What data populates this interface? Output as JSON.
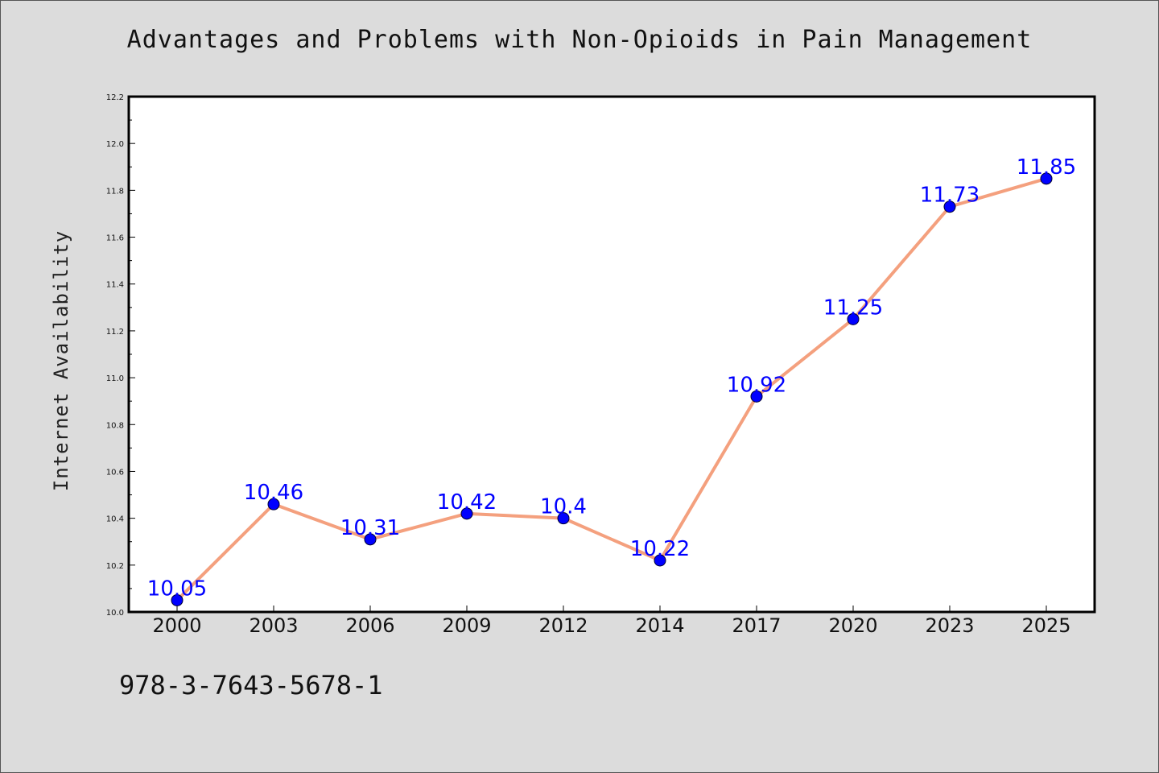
{
  "title": "Advantages and Problems with Non-Opioids in Pain Management",
  "footer_code": "978-3-7643-5678-1",
  "colors": {
    "background": "#dcdcdc",
    "plot_background": "#ffffff",
    "line": "#f4a07e",
    "marker": "#0000ff",
    "data_label": "#0000ff"
  },
  "chart_data": {
    "type": "line",
    "title": "Advantages and Problems with Non-Opioids in Pain Management",
    "xlabel": "",
    "ylabel": "Internet Availability",
    "categories": [
      "2000",
      "2003",
      "2006",
      "2009",
      "2012",
      "2014",
      "2017",
      "2020",
      "2023",
      "2025"
    ],
    "series": [
      {
        "values": [
          10.05,
          10.46,
          10.31,
          10.42,
          10.4,
          10.22,
          10.92,
          11.25,
          11.73,
          11.85
        ],
        "labels": [
          "10.05",
          "10.46",
          "10.31",
          "10.42",
          "10.4",
          "10.22",
          "10.92",
          "11.25",
          "11.73",
          "11.85"
        ]
      }
    ],
    "ylim": [
      10.0,
      12.2
    ],
    "yticks": [
      "10.0",
      "10.2",
      "10.4",
      "10.6",
      "10.8",
      "11.0",
      "11.2",
      "11.4",
      "11.6",
      "11.8",
      "12.0",
      "12.2"
    ],
    "grid": false,
    "legend": "none",
    "markers": true,
    "data_labels": true
  }
}
